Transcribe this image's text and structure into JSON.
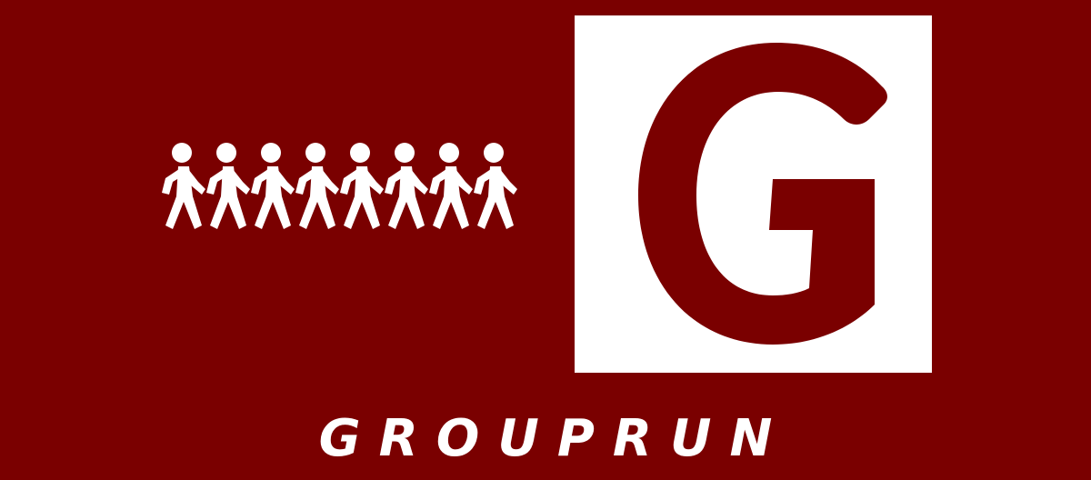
{
  "brand": {
    "name": "GROUPRUN",
    "logo_letter": "G",
    "runner_count": 8,
    "icon": "group-of-runners-icon"
  },
  "colors": {
    "background": "#7a0000",
    "foreground": "#ffffff"
  }
}
